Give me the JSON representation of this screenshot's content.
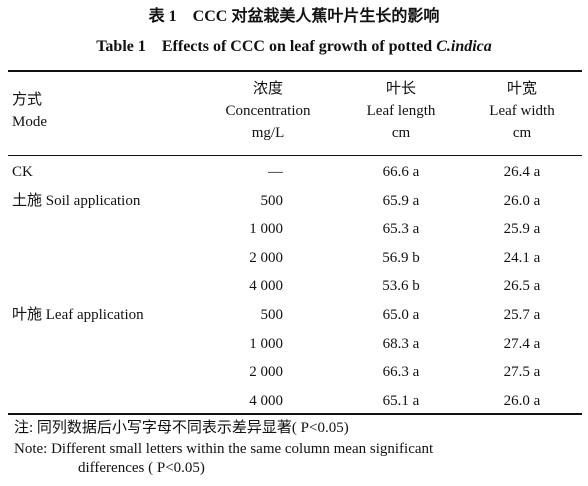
{
  "title_cn": "表 1　CCC 对盆栽美人蕉叶片生长的影响",
  "title_en": {
    "text": "Table 1　Effects of CCC on leaf growth of potted ",
    "italic": "C.indica"
  },
  "table": {
    "header": [
      [
        "方式",
        "Mode"
      ],
      [
        "浓度",
        "Concentration",
        "mg/L"
      ],
      [
        "叶长",
        "Leaf length",
        "cm"
      ],
      [
        "叶宽",
        "Leaf width",
        "cm"
      ]
    ],
    "rows": [
      [
        "CK",
        "—",
        "66.6 a",
        "26.4 a"
      ],
      [
        "土施 Soil application",
        "500",
        "65.9 a",
        "26.0 a"
      ],
      [
        null,
        "1 000",
        "65.3 a",
        "25.9 a"
      ],
      [
        null,
        "2 000",
        "56.9 b",
        "24.1 a"
      ],
      [
        null,
        "4 000",
        "53.6 b",
        "26.5 a"
      ],
      [
        "叶施 Leaf application",
        "500",
        "65.0 a",
        "25.7 a"
      ],
      [
        null,
        "1 000",
        "68.3 a",
        "27.4 a"
      ],
      [
        null,
        "2 000",
        "66.3 a",
        "27.5 a"
      ],
      [
        null,
        "4 000",
        "65.1 a",
        "26.0 a"
      ]
    ]
  },
  "notes": [
    "注: 同列数据后小写字母不同表示差异显著( P<0.05)",
    "Note: Different small letters within the same column mean significant",
    "differences ( P<0.05)"
  ]
}
